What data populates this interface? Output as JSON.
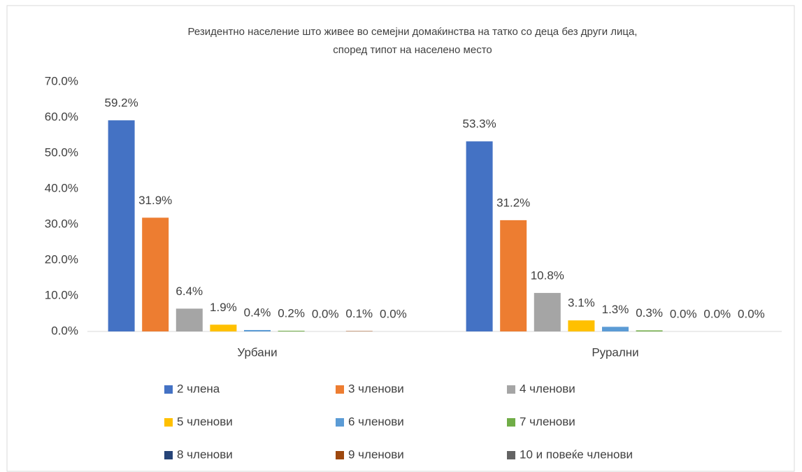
{
  "chart_data": {
    "type": "bar",
    "title": [
      "Резидентно население што живее во семејни домаќинства на татко со деца без други лица,",
      "според типот на населено место"
    ],
    "categories": [
      "Урбани",
      "Рурални"
    ],
    "series": [
      {
        "name": "2 члена",
        "color": "#4472c4",
        "values": [
          59.2,
          53.3
        ],
        "value_labels": [
          "59.2%",
          "53.3%"
        ]
      },
      {
        "name": "3 членови",
        "color": "#ed7d31",
        "values": [
          31.9,
          31.2
        ],
        "value_labels": [
          "31.9%",
          "31.2%"
        ]
      },
      {
        "name": "4 членови",
        "color": "#a5a5a5",
        "values": [
          6.4,
          10.8
        ],
        "value_labels": [
          "6.4%",
          "10.8%"
        ]
      },
      {
        "name": "5 членови",
        "color": "#ffc000",
        "values": [
          1.9,
          3.1
        ],
        "value_labels": [
          "1.9%",
          "3.1%"
        ]
      },
      {
        "name": "6 членови",
        "color": "#5b9bd5",
        "values": [
          0.4,
          1.3
        ],
        "value_labels": [
          "0.4%",
          "1.3%"
        ]
      },
      {
        "name": "7 членови",
        "color": "#70ad47",
        "values": [
          0.2,
          0.3
        ],
        "value_labels": [
          "0.2%",
          "0.3%"
        ]
      },
      {
        "name": "8 членови",
        "color": "#264478",
        "values": [
          0.0,
          0.0
        ],
        "value_labels": [
          "0.0%",
          "0.0%"
        ]
      },
      {
        "name": "9 членови",
        "color": "#9e480e",
        "values": [
          0.1,
          0.0
        ],
        "value_labels": [
          "0.1%",
          "0.0%"
        ]
      },
      {
        "name": "10 и повеќе членови",
        "color": "#636363",
        "values": [
          0.0,
          0.0
        ],
        "value_labels": [
          "0.0%",
          "0.0%"
        ]
      }
    ],
    "ylim": [
      0,
      70
    ],
    "yticks": [
      {
        "value": 0,
        "label": "0.0%"
      },
      {
        "value": 10,
        "label": "10.0%"
      },
      {
        "value": 20,
        "label": "20.0%"
      },
      {
        "value": 30,
        "label": "30.0%"
      },
      {
        "value": 40,
        "label": "40.0%"
      },
      {
        "value": 50,
        "label": "50.0%"
      },
      {
        "value": 60,
        "label": "60.0%"
      },
      {
        "value": 70,
        "label": "70.0%"
      }
    ],
    "legend": "bottom"
  }
}
